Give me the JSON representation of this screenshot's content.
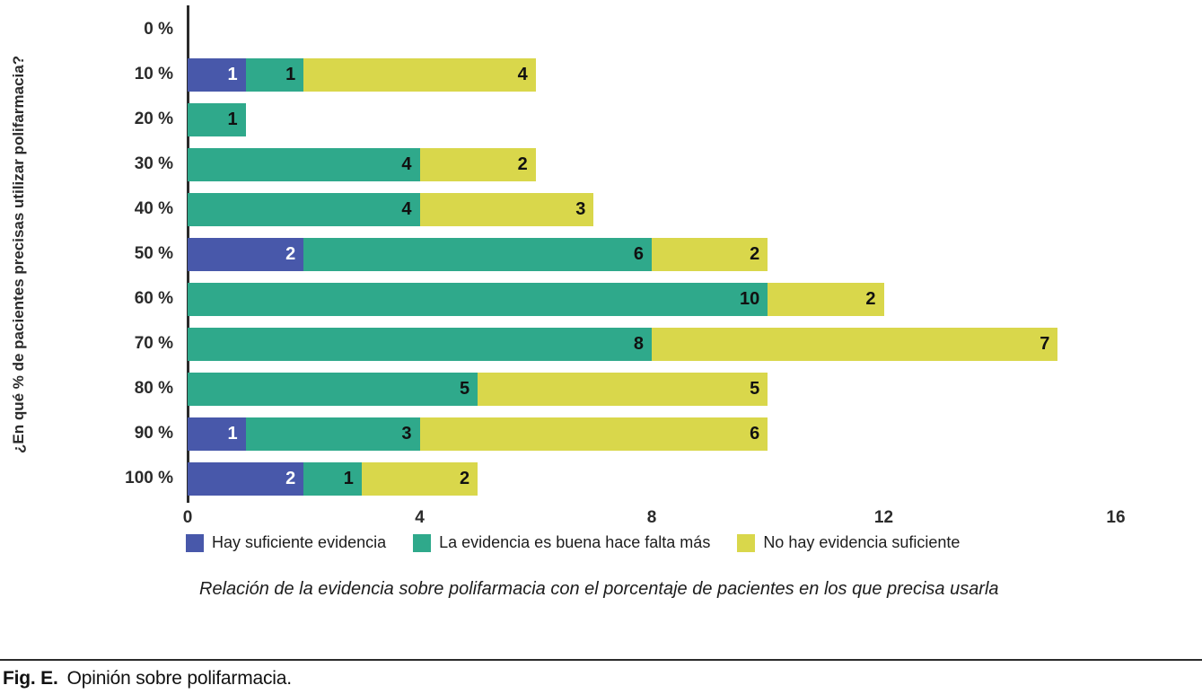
{
  "figure": {
    "fig_label": "Fig. E.",
    "fig_caption": "Opinión sobre polifarmacia."
  },
  "chart_data": {
    "type": "bar",
    "orientation": "horizontal",
    "stacked": true,
    "title": "",
    "xlabel": "",
    "ylabel": "¿En qué % de pacientes precisas utilizar polifarmacia?",
    "caption": "Relación de la evidencia sobre polifarmacia con el porcentaje de pacientes en los que precisa usarla",
    "categories": [
      "0 %",
      "10 %",
      "20 %",
      "30 %",
      "40 %",
      "50 %",
      "60 %",
      "70 %",
      "80 %",
      "90 %",
      "100 %"
    ],
    "series": [
      {
        "name": "Hay suficiente evidencia",
        "color": "#4858aa",
        "label_color": "#ffffff",
        "values": [
          0,
          1,
          0,
          0,
          0,
          2,
          0,
          0,
          0,
          1,
          2
        ]
      },
      {
        "name": "La evidencia es buena hace falta más",
        "color": "#2fa98b",
        "label_color": "#111111",
        "values": [
          0,
          1,
          1,
          4,
          4,
          6,
          10,
          8,
          5,
          3,
          1
        ]
      },
      {
        "name": "No hay evidencia suficiente",
        "color": "#d9d74b",
        "label_color": "#111111",
        "values": [
          0,
          4,
          0,
          2,
          3,
          2,
          2,
          7,
          5,
          6,
          2
        ]
      }
    ],
    "xlim": [
      0,
      16
    ],
    "x_ticks": [
      0,
      4,
      8,
      12,
      16
    ],
    "grid": false,
    "legend_position": "bottom",
    "colors": {
      "axis": "#2b2b2b",
      "text": "#1a1a1a"
    }
  }
}
